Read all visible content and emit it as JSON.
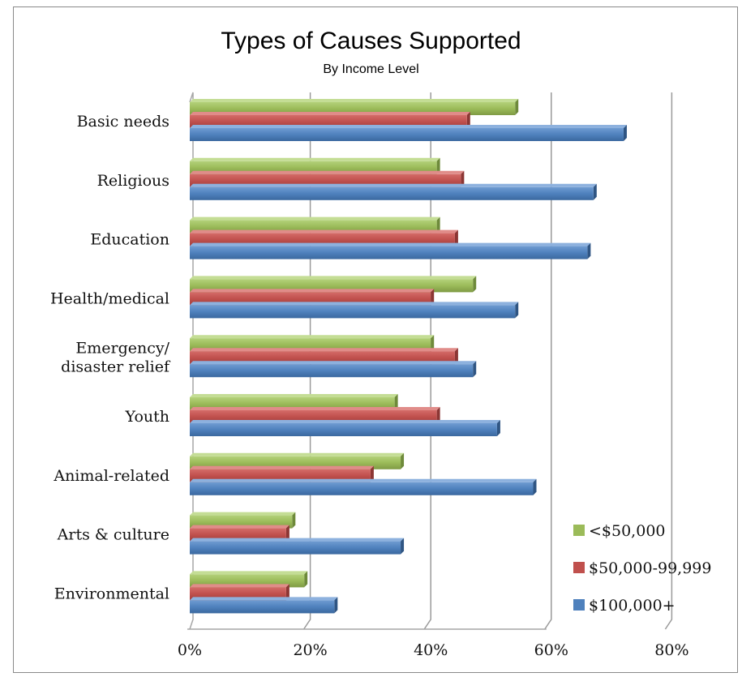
{
  "chart_data": {
    "type": "bar",
    "orientation": "horizontal",
    "title": "Types of Causes Supported",
    "subtitle": "By Income Level",
    "categories": [
      "Basic needs",
      "Religious",
      "Education",
      "Health/medical",
      "Emergency/\ndisaster relief",
      "Youth",
      "Animal-related",
      "Arts & culture",
      "Environmental"
    ],
    "series": [
      {
        "name": "<$50,000",
        "color": "#9bbb59",
        "values": [
          54,
          41,
          41,
          47,
          40,
          34,
          35,
          17,
          19
        ]
      },
      {
        "name": "$50,000-99,999",
        "color": "#c0504d",
        "values": [
          46,
          45,
          44,
          40,
          44,
          41,
          30,
          16,
          16
        ]
      },
      {
        "name": "$100,000+",
        "color": "#4f81bd",
        "values": [
          72,
          67,
          66,
          54,
          47,
          51,
          57,
          35,
          24
        ]
      }
    ],
    "xlim": [
      0,
      80
    ],
    "xticks": [
      "0%",
      "20%",
      "40%",
      "60%",
      "80%"
    ],
    "grid": true,
    "legend_position": "bottom-right"
  }
}
